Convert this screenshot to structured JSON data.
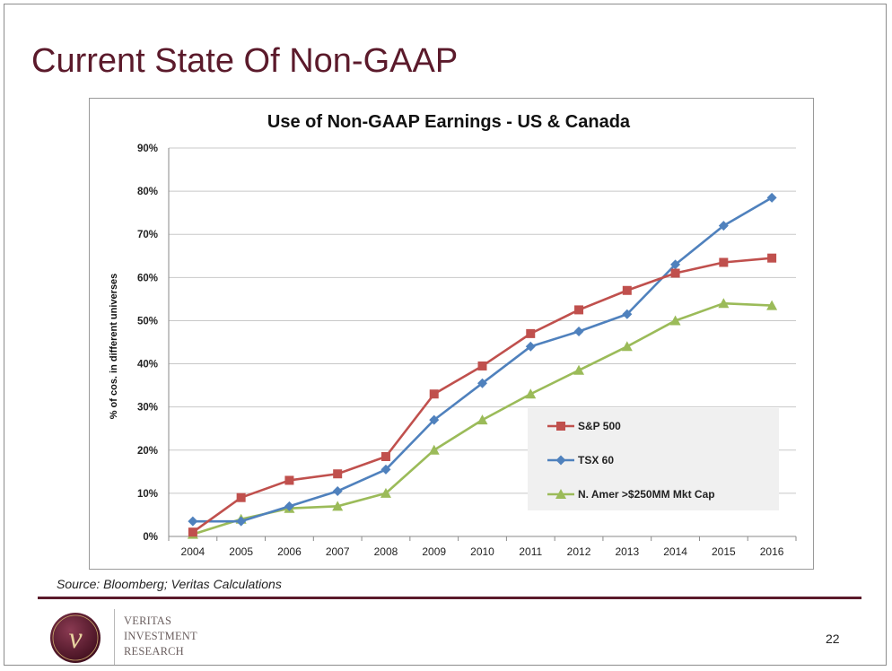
{
  "slide": {
    "title": "Current State Of Non-GAAP",
    "source": "Source:  Bloomberg; Veritas Calculations",
    "page_number": "22",
    "logo_lines": [
      "VERITAS",
      "INVESTMENT",
      "RESEARCH"
    ],
    "logo_letter": "v",
    "accent_color": "#5b1a2b"
  },
  "chart_data": {
    "type": "line",
    "title": "Use of Non-GAAP Earnings - US & Canada",
    "xlabel": "",
    "ylabel": "% of cos. in different universes",
    "x": [
      2004,
      2005,
      2006,
      2007,
      2008,
      2009,
      2010,
      2011,
      2012,
      2013,
      2014,
      2015,
      2016
    ],
    "ylim": [
      0,
      90
    ],
    "yticks": [
      0,
      10,
      20,
      30,
      40,
      50,
      60,
      70,
      80,
      90
    ],
    "ytick_labels": [
      "0%",
      "10%",
      "20%",
      "30%",
      "40%",
      "50%",
      "60%",
      "70%",
      "80%",
      "90%"
    ],
    "grid": true,
    "legend_position": "bottom-right",
    "series": [
      {
        "name": "S&P 500",
        "color": "#c0504d",
        "marker": "square",
        "values": [
          1,
          9,
          13,
          14.5,
          18.5,
          33,
          39.5,
          47,
          52.5,
          57,
          61,
          63.5,
          64.5
        ]
      },
      {
        "name": "TSX 60",
        "color": "#4f81bd",
        "marker": "diamond",
        "values": [
          3.5,
          3.5,
          7,
          10.5,
          15.5,
          27,
          35.5,
          44,
          47.5,
          51.5,
          63,
          72,
          78.5
        ]
      },
      {
        "name": "N. Amer >$250MM Mkt Cap",
        "color": "#9bbb59",
        "marker": "triangle",
        "values": [
          0.5,
          4,
          6.5,
          7,
          10,
          20,
          27,
          33,
          38.5,
          44,
          50,
          54,
          53.5
        ]
      }
    ]
  }
}
